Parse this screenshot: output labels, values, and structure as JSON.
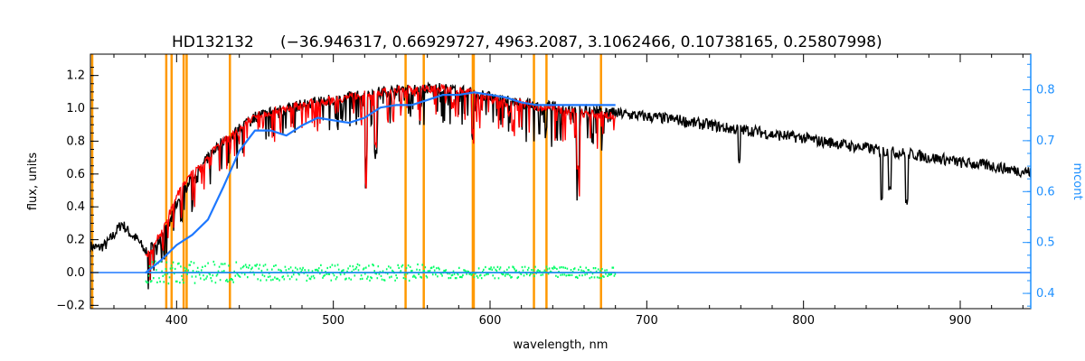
{
  "chart_data": {
    "type": "line",
    "title": "HD132132",
    "subtitle": "(−36.946317, 0.66929727, 4963.2087, 3.1062466, 0.10738165, 0.25807998)",
    "xlabel": "wavelength, nm",
    "ylabel": "flux, units",
    "y2label": "mcont",
    "xlim": [
      345,
      945
    ],
    "ylim": [
      -0.22,
      1.33
    ],
    "y2lim": [
      0.37,
      0.87
    ],
    "x_ticks": [
      400,
      500,
      600,
      700,
      800,
      900
    ],
    "y_ticks": [
      -0.2,
      0.0,
      0.2,
      0.4,
      0.6,
      0.8,
      1.0,
      1.2
    ],
    "y2_ticks": [
      0.4,
      0.5,
      0.6,
      0.7,
      0.8
    ],
    "x_tick_labels": [
      "400",
      "500",
      "600",
      "700",
      "800",
      "900"
    ],
    "y_tick_labels": [
      "−0.2",
      "0.0",
      "0.2",
      "0.4",
      "0.6",
      "0.8",
      "1.0",
      "1.2"
    ],
    "y2_tick_labels": [
      "0.4",
      "0.5",
      "0.6",
      "0.7",
      "0.8"
    ],
    "colors": {
      "observed": "#000000",
      "model": "#ff0000",
      "residual": "#00ff66",
      "continuum": "#1e78ff",
      "lines": "#ff9900",
      "right_axis": "#1e90ff"
    },
    "series": [
      {
        "id": "observed",
        "x": [
          345,
          350,
          355,
          360,
          365,
          370,
          375,
          380,
          385,
          390,
          395,
          400,
          405,
          410,
          415,
          420,
          425,
          430,
          435,
          440,
          445,
          450,
          460,
          470,
          480,
          490,
          500,
          510,
          520,
          530,
          540,
          550,
          560,
          570,
          580,
          590,
          600,
          610,
          620,
          630,
          640,
          650,
          660,
          670,
          680,
          690,
          700,
          710,
          720,
          730,
          740,
          750,
          760,
          770,
          780,
          790,
          800,
          810,
          820,
          830,
          840,
          850,
          860,
          870,
          880,
          890,
          900,
          910,
          920,
          930,
          945
        ],
        "y": [
          0.16,
          0.15,
          0.17,
          0.23,
          0.3,
          0.24,
          0.2,
          0.13,
          0.16,
          0.22,
          0.28,
          0.42,
          0.52,
          0.58,
          0.62,
          0.7,
          0.76,
          0.8,
          0.83,
          0.88,
          0.92,
          0.95,
          0.98,
          1.0,
          1.02,
          1.04,
          1.05,
          1.07,
          1.09,
          1.1,
          1.11,
          1.12,
          1.12,
          1.12,
          1.11,
          1.09,
          1.07,
          1.05,
          1.03,
          1.02,
          1.01,
          1.0,
          0.99,
          0.98,
          0.97,
          0.96,
          0.95,
          0.94,
          0.93,
          0.91,
          0.9,
          0.88,
          0.87,
          0.86,
          0.84,
          0.83,
          0.82,
          0.8,
          0.79,
          0.77,
          0.76,
          0.74,
          0.73,
          0.72,
          0.7,
          0.69,
          0.67,
          0.66,
          0.65,
          0.63,
          0.61
        ]
      },
      {
        "id": "model",
        "x": [
          380,
          385,
          390,
          395,
          400,
          405,
          410,
          415,
          420,
          425,
          430,
          435,
          440,
          445,
          450,
          460,
          470,
          480,
          490,
          500,
          510,
          520,
          530,
          540,
          550,
          560,
          570,
          580,
          590,
          600,
          610,
          620,
          630,
          640,
          650,
          660,
          670,
          680
        ],
        "y": [
          0.1,
          0.16,
          0.24,
          0.35,
          0.48,
          0.55,
          0.6,
          0.64,
          0.7,
          0.76,
          0.8,
          0.83,
          0.88,
          0.92,
          0.95,
          0.98,
          1.0,
          1.02,
          1.04,
          1.05,
          1.07,
          1.09,
          1.1,
          1.11,
          1.12,
          1.12,
          1.12,
          1.11,
          1.09,
          1.07,
          1.05,
          1.03,
          1.01,
          1.0,
          0.98,
          0.97,
          0.96,
          0.95
        ]
      },
      {
        "id": "continuum",
        "axis": "right",
        "x": [
          380,
          390,
          400,
          410,
          420,
          430,
          440,
          450,
          460,
          470,
          480,
          490,
          500,
          510,
          520,
          530,
          540,
          550,
          560,
          570,
          580,
          590,
          600,
          610,
          620,
          630,
          640,
          650,
          660,
          670,
          680
        ],
        "y": [
          0.44,
          0.465,
          0.495,
          0.515,
          0.545,
          0.61,
          0.68,
          0.72,
          0.72,
          0.71,
          0.73,
          0.745,
          0.74,
          0.735,
          0.745,
          0.765,
          0.77,
          0.77,
          0.78,
          0.79,
          0.79,
          0.795,
          0.79,
          0.785,
          0.775,
          0.77,
          0.77,
          0.77,
          0.77,
          0.77,
          0.77
        ]
      },
      {
        "id": "residual",
        "x": [
          380,
          680
        ],
        "y": [
          0.0,
          0.0
        ]
      }
    ],
    "line_markers_nm": [
      393.4,
      396.8,
      404.5,
      406.4,
      434.0,
      546.1,
      557.7,
      589.0,
      589.6,
      628.0,
      636.0,
      670.8
    ],
    "absorption_features": [
      {
        "x": 521,
        "depth": 0.4
      },
      {
        "x": 527,
        "depth": 0.35
      },
      {
        "x": 589,
        "depth": 0.25
      },
      {
        "x": 656.3,
        "depth": 0.38
      },
      {
        "x": 759,
        "depth": 0.2
      },
      {
        "x": 850,
        "depth": 0.28
      },
      {
        "x": 855,
        "depth": 0.2
      },
      {
        "x": 866,
        "depth": 0.3
      }
    ]
  }
}
